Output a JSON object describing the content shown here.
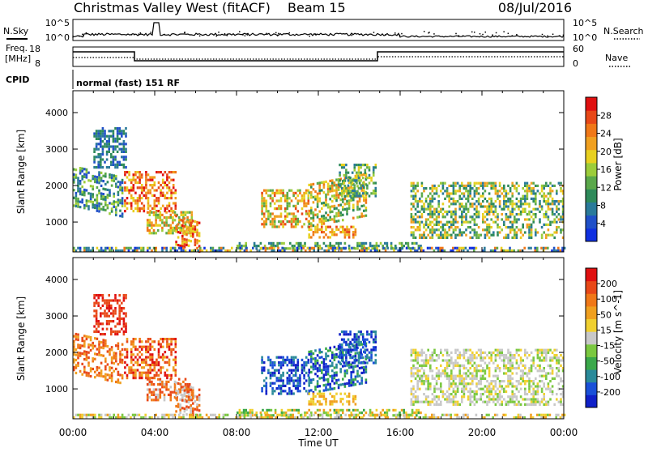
{
  "header": {
    "station": "Christmas Valley West (fitACF)",
    "beam": "Beam 15",
    "date": "08/Jul/2016"
  },
  "strip": {
    "nsky_label": "N.Sky",
    "nsky_ticks": [
      "10^5",
      "10^0"
    ],
    "nsearch_label": "N.Search",
    "nsearch_ticks": [
      "10^5",
      "10^0"
    ],
    "freq_label_line1": "Freq.",
    "freq_label_line2": "[MHz]",
    "freq_ticks": [
      "18",
      "8"
    ],
    "nave_label": "Nave",
    "nave_ticks": [
      "60",
      "0"
    ],
    "cpid_label": "CPID",
    "cpid_value": "normal (fast) 151 RF"
  },
  "chart_data": [
    {
      "type": "heatmap",
      "name": "power",
      "ylabel": "Slant Range [km]",
      "yticks": [
        "1000",
        "2000",
        "3000",
        "4000"
      ],
      "ylim": [
        180,
        4600
      ],
      "xlim": [
        0,
        24
      ],
      "colorbar": {
        "label": "Power [dB]",
        "ticks": [
          "4",
          "8",
          "12",
          "16",
          "20",
          "24",
          "28"
        ],
        "colors": [
          "#1030e0",
          "#2050c8",
          "#2a7a9a",
          "#2e8a5a",
          "#5aa84a",
          "#9ccc3a",
          "#e8d020",
          "#f0a020",
          "#f07818",
          "#e84818",
          "#e01010"
        ]
      }
    },
    {
      "type": "heatmap",
      "name": "velocity",
      "ylabel": "Slant Range [km]",
      "yticks": [
        "1000",
        "2000",
        "3000",
        "4000"
      ],
      "ylim": [
        180,
        4600
      ],
      "xlim": [
        0,
        24
      ],
      "xlabel": "Time UT",
      "xticks": [
        "00:00",
        "04:00",
        "08:00",
        "12:00",
        "16:00",
        "20:00",
        "00:00"
      ],
      "colorbar": {
        "label": "Velocity [m s^-1]",
        "ticks": [
          "200",
          "100",
          "50",
          "15",
          "-15",
          "-50",
          "-100",
          "-200"
        ],
        "colors": [
          "#1020c8",
          "#1a50d8",
          "#2a8a9a",
          "#3aa84a",
          "#7ac840",
          "#c8c8c8",
          "#f0d030",
          "#f0a020",
          "#f07818",
          "#e84818",
          "#e01010"
        ]
      }
    }
  ]
}
